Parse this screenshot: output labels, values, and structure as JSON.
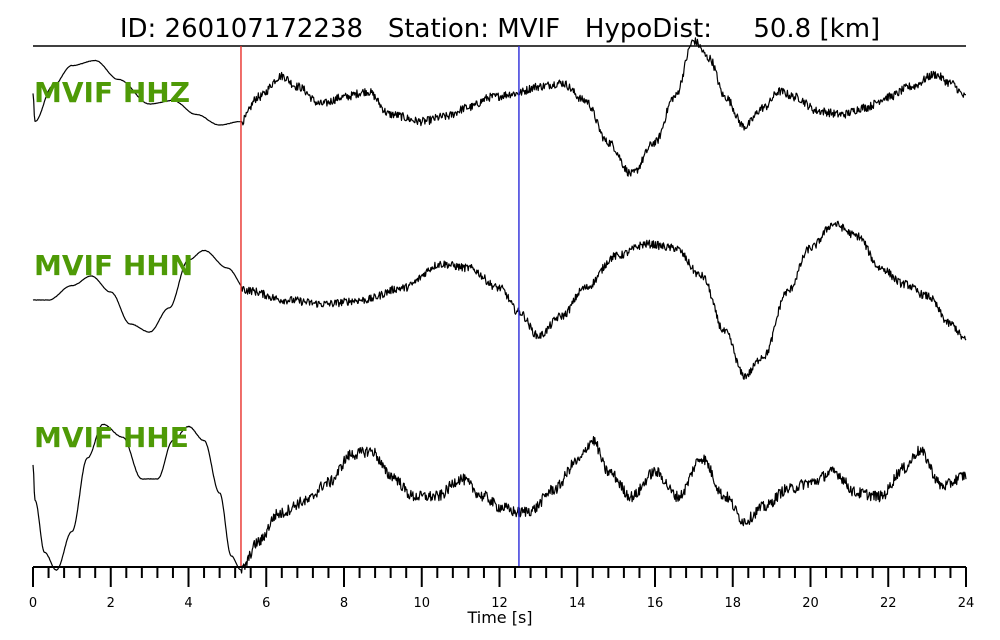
{
  "header": {
    "title": "ID: 260107172238   Station: MVIF   HypoDist:     50.8 [km]"
  },
  "colors": {
    "trace": "#000000",
    "label": "#4e9a06",
    "p_pick": "#e8302a",
    "s_pick": "#2b2bd9",
    "background": "#ffffff"
  },
  "chart_data": {
    "type": "line",
    "title": "ID: 260107172238   Station: MVIF   HypoDist:     50.8 [km]",
    "xlabel": "Time [s]",
    "ylabel": "",
    "xlim": [
      0,
      24
    ],
    "xticks": [
      0,
      2,
      4,
      6,
      8,
      10,
      12,
      14,
      16,
      18,
      20,
      22,
      24
    ],
    "minor_tick_step": 0.4,
    "grid": false,
    "legend": "none",
    "picks": [
      {
        "phase": "P",
        "time": 5.35,
        "color": "#e8302a"
      },
      {
        "phase": "S",
        "time": 12.5,
        "color": "#2b2bd9"
      }
    ],
    "series": [
      {
        "name": "MVIF HHZ",
        "noise": 0.06,
        "x": [
          0,
          0.05,
          0.5,
          1.0,
          1.6,
          2.2,
          3.0,
          3.6,
          4.2,
          4.8,
          5.35,
          5.8,
          6.4,
          6.8,
          7.4,
          8.0,
          8.6,
          9.2,
          10.0,
          10.6,
          11.2,
          11.8,
          12.4,
          13.0,
          13.6,
          14.2,
          14.8,
          15.4,
          16.0,
          16.5,
          17.0,
          17.4,
          17.8,
          18.3,
          18.8,
          19.2,
          19.6,
          20.2,
          20.8,
          21.4,
          22.0,
          22.6,
          23.2,
          23.6,
          24.0
        ],
        "values": [
          0.35,
          -0.05,
          0.45,
          0.75,
          0.82,
          0.55,
          0.2,
          0.25,
          0.05,
          -0.1,
          -0.05,
          0.3,
          0.6,
          0.45,
          0.2,
          0.3,
          0.38,
          0.05,
          -0.05,
          0.02,
          0.15,
          0.3,
          0.35,
          0.45,
          0.5,
          0.25,
          -0.35,
          -0.8,
          -0.35,
          0.3,
          1.1,
          0.85,
          0.3,
          -0.12,
          0.15,
          0.38,
          0.3,
          0.1,
          0.05,
          0.15,
          0.3,
          0.45,
          0.62,
          0.5,
          0.3
        ]
      },
      {
        "name": "MVIF HHN",
        "noise": 0.05,
        "x": [
          0,
          0.4,
          1.0,
          1.5,
          2.0,
          2.5,
          3.0,
          3.5,
          4.0,
          4.4,
          5.0,
          5.5,
          6.5,
          7.5,
          8.5,
          9.5,
          10.5,
          11.2,
          12.0,
          12.5,
          13.0,
          13.6,
          14.2,
          15.0,
          15.8,
          16.5,
          17.2,
          17.8,
          18.3,
          18.8,
          19.4,
          20.0,
          20.6,
          21.2,
          21.8,
          22.4,
          23.0,
          23.6,
          24.0
        ],
        "values": [
          0.0,
          0.0,
          0.18,
          0.3,
          0.1,
          -0.3,
          -0.4,
          -0.1,
          0.5,
          0.62,
          0.4,
          0.12,
          0.0,
          -0.05,
          0.0,
          0.15,
          0.45,
          0.4,
          0.15,
          -0.15,
          -0.45,
          -0.2,
          0.15,
          0.55,
          0.7,
          0.65,
          0.3,
          -0.4,
          -0.95,
          -0.7,
          0.1,
          0.65,
          0.95,
          0.8,
          0.4,
          0.2,
          0.05,
          -0.3,
          -0.5
        ]
      },
      {
        "name": "MVIF HHE",
        "noise": 0.08,
        "x": [
          0,
          0.05,
          0.3,
          0.6,
          1.0,
          1.4,
          1.8,
          2.3,
          2.8,
          3.2,
          3.6,
          4.0,
          4.4,
          4.8,
          5.1,
          5.35,
          5.8,
          6.3,
          7.0,
          7.6,
          8.2,
          8.7,
          9.2,
          9.8,
          10.4,
          11.0,
          11.6,
          12.0,
          12.5,
          12.8,
          13.4,
          14.0,
          14.4,
          14.8,
          15.4,
          16.0,
          16.6,
          17.2,
          17.8,
          18.3,
          18.8,
          19.4,
          20.0,
          20.6,
          21.2,
          21.8,
          22.4,
          22.8,
          23.4,
          24.0
        ],
        "values": [
          0.5,
          0.0,
          -0.75,
          -1.0,
          -0.45,
          0.6,
          1.08,
          0.9,
          0.3,
          0.3,
          0.85,
          1.05,
          0.85,
          0.1,
          -0.8,
          -1.0,
          -0.6,
          -0.2,
          -0.02,
          0.25,
          0.65,
          0.7,
          0.35,
          0.05,
          0.05,
          0.3,
          0.05,
          -0.1,
          -0.18,
          -0.15,
          0.15,
          0.55,
          0.85,
          0.4,
          0.05,
          0.4,
          0.05,
          0.6,
          0.05,
          -0.3,
          -0.1,
          0.15,
          0.25,
          0.4,
          0.1,
          0.05,
          0.45,
          0.7,
          0.2,
          0.35
        ]
      }
    ]
  }
}
